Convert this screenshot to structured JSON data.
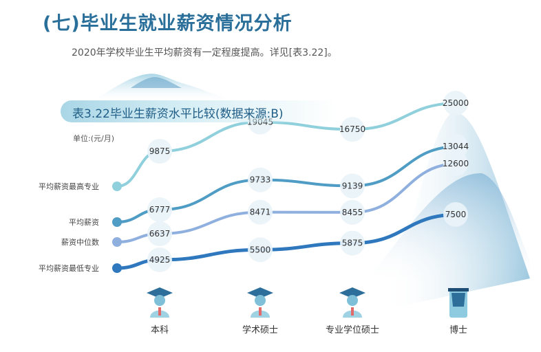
{
  "heading": "(七)毕业生就业薪资情况分析",
  "intro": "2020年学校毕业生平均薪资有一定程度提高。详见[表3.22]。",
  "chart_data": {
    "type": "line",
    "title": "表3.22毕业生薪资水平比较(数据来源:B)",
    "unit": "单位:(元/月)",
    "categories": [
      "本科",
      "学术硕士",
      "专业学位硕士",
      "博士"
    ],
    "series": [
      {
        "name": "平均薪资最高专业",
        "values": [
          9875,
          19045,
          16750,
          25000
        ],
        "color": "#8fd0dc"
      },
      {
        "name": "平均薪资",
        "values": [
          6777,
          9733,
          9139,
          13044
        ],
        "color": "#4f9cc4"
      },
      {
        "name": "薪资中位数",
        "values": [
          6637,
          8471,
          8455,
          12600
        ],
        "color": "#8fb0de"
      },
      {
        "name": "平均薪资最低专业",
        "values": [
          4925,
          5500,
          5875,
          7500
        ],
        "color": "#2f78be"
      }
    ]
  }
}
